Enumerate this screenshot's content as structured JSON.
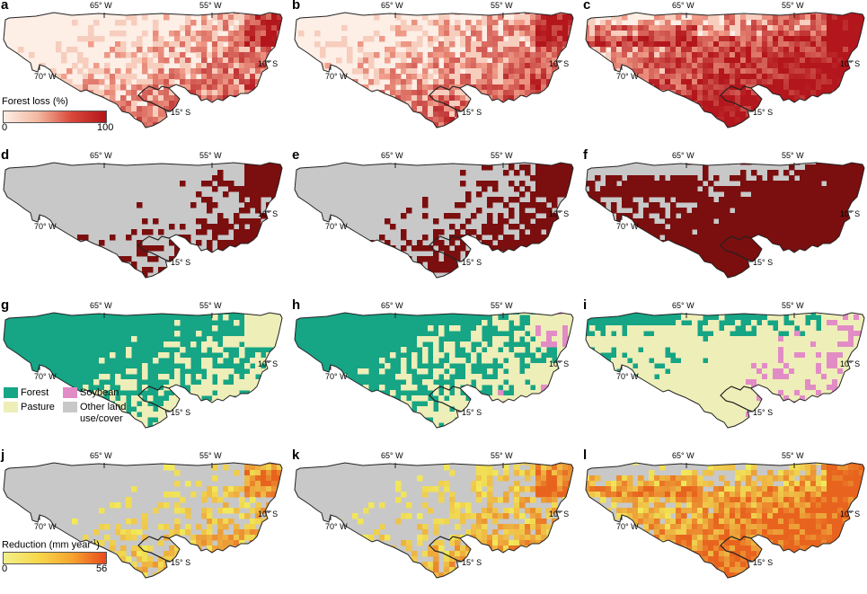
{
  "panels": [
    {
      "id": "a",
      "label": "a",
      "kind": "loss",
      "pattern": 1
    },
    {
      "id": "b",
      "label": "b",
      "kind": "loss",
      "pattern": 2
    },
    {
      "id": "c",
      "label": "c",
      "kind": "loss",
      "pattern": 3
    },
    {
      "id": "d",
      "label": "d",
      "kind": "binary",
      "pattern": 1
    },
    {
      "id": "e",
      "label": "e",
      "kind": "binary",
      "pattern": 2
    },
    {
      "id": "f",
      "label": "f",
      "kind": "binary",
      "pattern": 3
    },
    {
      "id": "g",
      "label": "g",
      "kind": "landcover",
      "pattern": 1
    },
    {
      "id": "h",
      "label": "h",
      "kind": "landcover",
      "pattern": 2
    },
    {
      "id": "i",
      "label": "i",
      "kind": "landcover",
      "pattern": 3
    },
    {
      "id": "j",
      "label": "j",
      "kind": "reduction",
      "pattern": 1
    },
    {
      "id": "k",
      "label": "k",
      "kind": "reduction",
      "pattern": 2
    },
    {
      "id": "l",
      "label": "l",
      "kind": "reduction",
      "pattern": 3
    }
  ],
  "axis_labels": {
    "lon_65": "65° W",
    "lon_55": "55° W",
    "lon_70": "70° W",
    "lat_10": "10° S",
    "lat_15": "15° S"
  },
  "forest_loss_legend": {
    "title": "Forest loss (%)",
    "min": "0",
    "max": "100",
    "colors": [
      "#fdeee6",
      "#b3161c"
    ]
  },
  "landcover_legend": {
    "forest": "Forest",
    "pasture": "Pasture",
    "soybean": "Soybean",
    "other": "Other land use/cover",
    "colors": {
      "forest": "#16a585",
      "pasture": "#eeeeb8",
      "soybean": "#e28cc6",
      "other": "#c8c8c8"
    }
  },
  "reduction_legend": {
    "title_main": "Reduction (mm year",
    "title_sup": "-1",
    "title_end": ")",
    "min": "0",
    "max": "56",
    "colors": [
      "#f2f08a",
      "#f7c440",
      "#e84a1c"
    ]
  },
  "colors": {
    "background_gray": "#c8c8c8",
    "background_light": "#fdeee6",
    "loss_dark": "#b3161c",
    "binary_dark": "#7b0e0e",
    "forest": "#16a585",
    "pasture": "#eeeeb8",
    "soybean": "#e28cc6",
    "reduction_light": "#f2ea5a",
    "reduction_dark": "#e8641e"
  }
}
